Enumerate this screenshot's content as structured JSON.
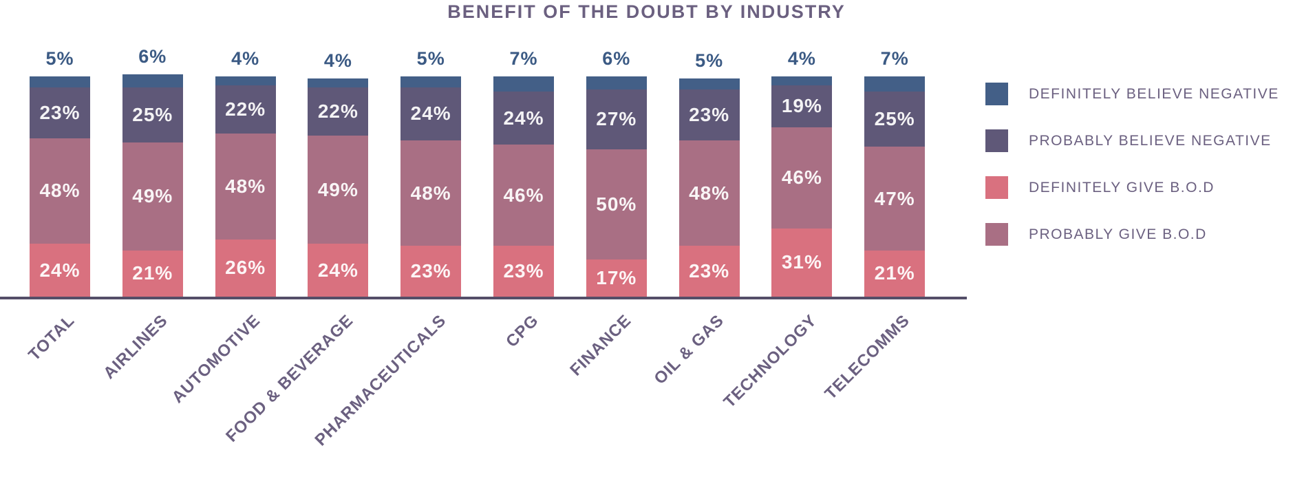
{
  "title": "BENEFIT OF THE DOUBT BY INDUSTRY",
  "unit": "%",
  "colors": {
    "definitely_believe_negative": "#435f87",
    "probably_believe_negative": "#5f5878",
    "definitely_give_bod": "#d9717f",
    "probably_give_bod": "#a96f84",
    "axis_line": "#544e68",
    "heading_text": "#6b6080",
    "top_value_text": "#3b5a84"
  },
  "legend": [
    {
      "label": "DEFINITELY BELIEVE NEGATIVE",
      "color_key": "definitely_believe_negative"
    },
    {
      "label": "PROBABLY BELIEVE NEGATIVE",
      "color_key": "probably_believe_negative"
    },
    {
      "label": "DEFINITELY GIVE B.O.D",
      "color_key": "definitely_give_bod"
    },
    {
      "label": "PROBABLY GIVE B.O.D",
      "color_key": "probably_give_bod"
    }
  ],
  "chart_data": {
    "type": "bar",
    "stacked": true,
    "orientation": "vertical",
    "title": "BENEFIT OF THE DOUBT BY INDUSTRY",
    "unit": "%",
    "legend_position": "right",
    "grid": false,
    "ylim": [
      0,
      100
    ],
    "categories": [
      "TOTAL",
      "AIRLINES",
      "AUTOMOTIVE",
      "FOOD & BEVERAGE",
      "PHARMACEUTICALS",
      "CPG",
      "FINANCE",
      "OIL & GAS",
      "TECHNOLOGY",
      "TELECOMMS"
    ],
    "series": [
      {
        "name": "DEFINITELY BELIEVE NEGATIVE",
        "color_key": "definitely_believe_negative",
        "stack_order_from_top": 1,
        "label_position": "above",
        "values": [
          5,
          6,
          4,
          4,
          5,
          7,
          6,
          5,
          4,
          7
        ]
      },
      {
        "name": "PROBABLY BELIEVE NEGATIVE",
        "color_key": "probably_believe_negative",
        "stack_order_from_top": 2,
        "label_position": "inside",
        "values": [
          23,
          25,
          22,
          22,
          24,
          24,
          27,
          23,
          19,
          25
        ]
      },
      {
        "name": "PROBABLY GIVE B.O.D",
        "color_key": "probably_give_bod",
        "stack_order_from_top": 3,
        "label_position": "inside",
        "values": [
          48,
          49,
          48,
          49,
          48,
          46,
          50,
          48,
          46,
          47
        ]
      },
      {
        "name": "DEFINITELY GIVE B.O.D",
        "color_key": "definitely_give_bod",
        "stack_order_from_top": 4,
        "label_position": "inside",
        "values": [
          24,
          21,
          26,
          24,
          23,
          23,
          17,
          23,
          31,
          21
        ]
      }
    ]
  }
}
